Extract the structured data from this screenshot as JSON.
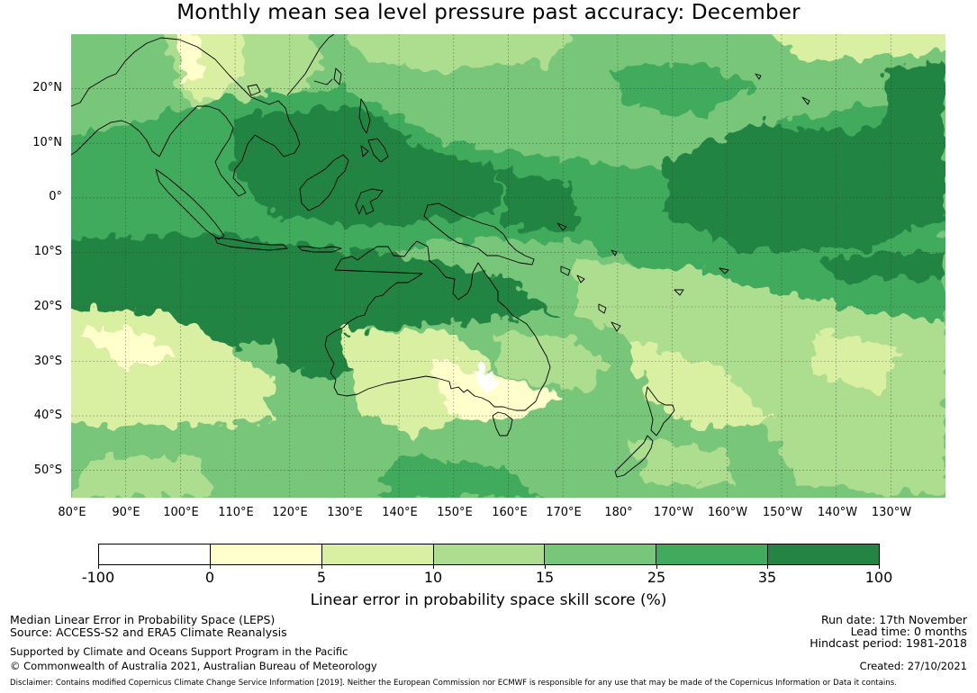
{
  "title": "Monthly mean sea level pressure past accuracy: December",
  "map": {
    "region": "Western Pacific, Maritime Continent and Australia",
    "lon_range_deg_east": [
      80,
      240
    ],
    "lat_range_deg": [
      -55,
      30
    ],
    "field": "Linear error in probability space skill score (%)",
    "coastlines_shown": true,
    "gridlines_shown": true
  },
  "axes": {
    "lat_labels": [
      "20°N",
      "10°N",
      "0°",
      "10°S",
      "20°S",
      "30°S",
      "40°S",
      "50°S"
    ],
    "lon_labels": [
      "80°E",
      "90°E",
      "100°E",
      "110°E",
      "120°E",
      "130°E",
      "140°E",
      "150°E",
      "160°E",
      "170°E",
      "180°",
      "170°W",
      "160°W",
      "150°W",
      "140°W",
      "130°W"
    ]
  },
  "colorbar": {
    "label": "Linear error in probability space skill score (%)",
    "ticks": [
      "-100",
      "0",
      "5",
      "10",
      "15",
      "25",
      "35",
      "100"
    ],
    "colors": [
      "#ffffff",
      "#ffffcc",
      "#d9f0a3",
      "#addd8e",
      "#78c679",
      "#41ab5d",
      "#238443"
    ]
  },
  "info_left": {
    "line1": "Median Linear Error in Probability Space (LEPS)",
    "line2": "Source: ACCESS-S2 and ERA5 Climate Reanalysis",
    "line3": "Supported by Climate and Oceans Support Program in the Pacific",
    "line4": "© Commonwealth of Australia 2021, Australian Bureau of Meteorology"
  },
  "info_right": {
    "run_date": "Run date: 17th November",
    "lead_time": "Lead time: 0 months",
    "hindcast": "Hindcast period: 1981-2018",
    "created": "Created: 27/10/2021"
  },
  "disclaimer": "Disclaimer: Contains modified Copernicus Climate Change Service Information [2019]. Neither the European Commission nor ECMWF is responsible for any use that may be made of the Copernicus Information or Data it contains."
}
